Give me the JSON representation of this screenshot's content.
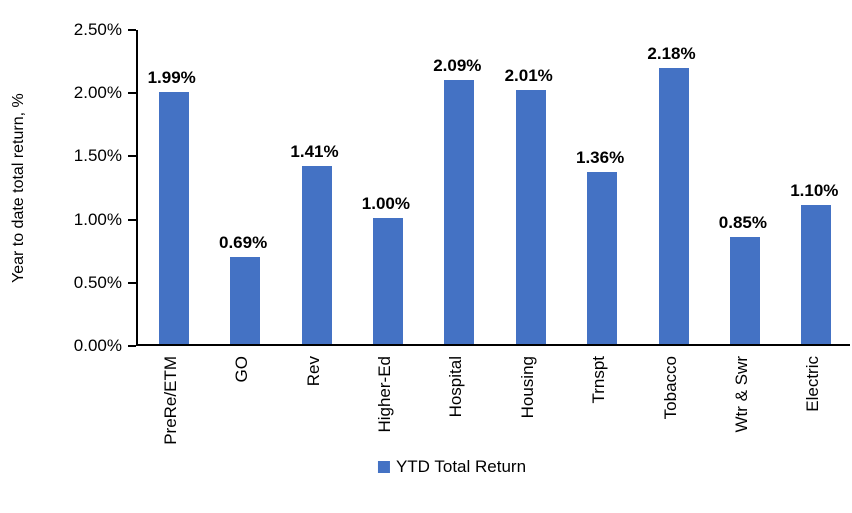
{
  "chart_data": {
    "type": "bar",
    "title": "",
    "categories": [
      "PreRe/ETM",
      "GO",
      "Rev",
      "Higher-Ed",
      "Hospital",
      "Housing",
      "Trnspt",
      "Tobacco",
      "Wtr & Swr",
      "Electric"
    ],
    "values": [
      1.99,
      0.69,
      1.41,
      1.0,
      2.09,
      2.01,
      1.36,
      2.18,
      0.85,
      1.1
    ],
    "value_labels": [
      "1.99%",
      "0.69%",
      "1.41%",
      "1.00%",
      "2.09%",
      "2.01%",
      "1.36%",
      "2.18%",
      "0.85%",
      "1.10%"
    ],
    "xlabel": "",
    "ylabel": "Year to date total return, %",
    "ylim": [
      0,
      2.5
    ],
    "y_tick_labels": [
      "0.00%",
      "0.50%",
      "1.00%",
      "1.50%",
      "2.00%",
      "2.50%"
    ],
    "y_tick_values": [
      0,
      0.5,
      1.0,
      1.5,
      2.0,
      2.5
    ],
    "grid": false,
    "legend_position": "bottom",
    "series_name": "YTD Total Return",
    "bar_color": "#4472C4",
    "axis_color": "#000000",
    "label_color": "#000000"
  }
}
